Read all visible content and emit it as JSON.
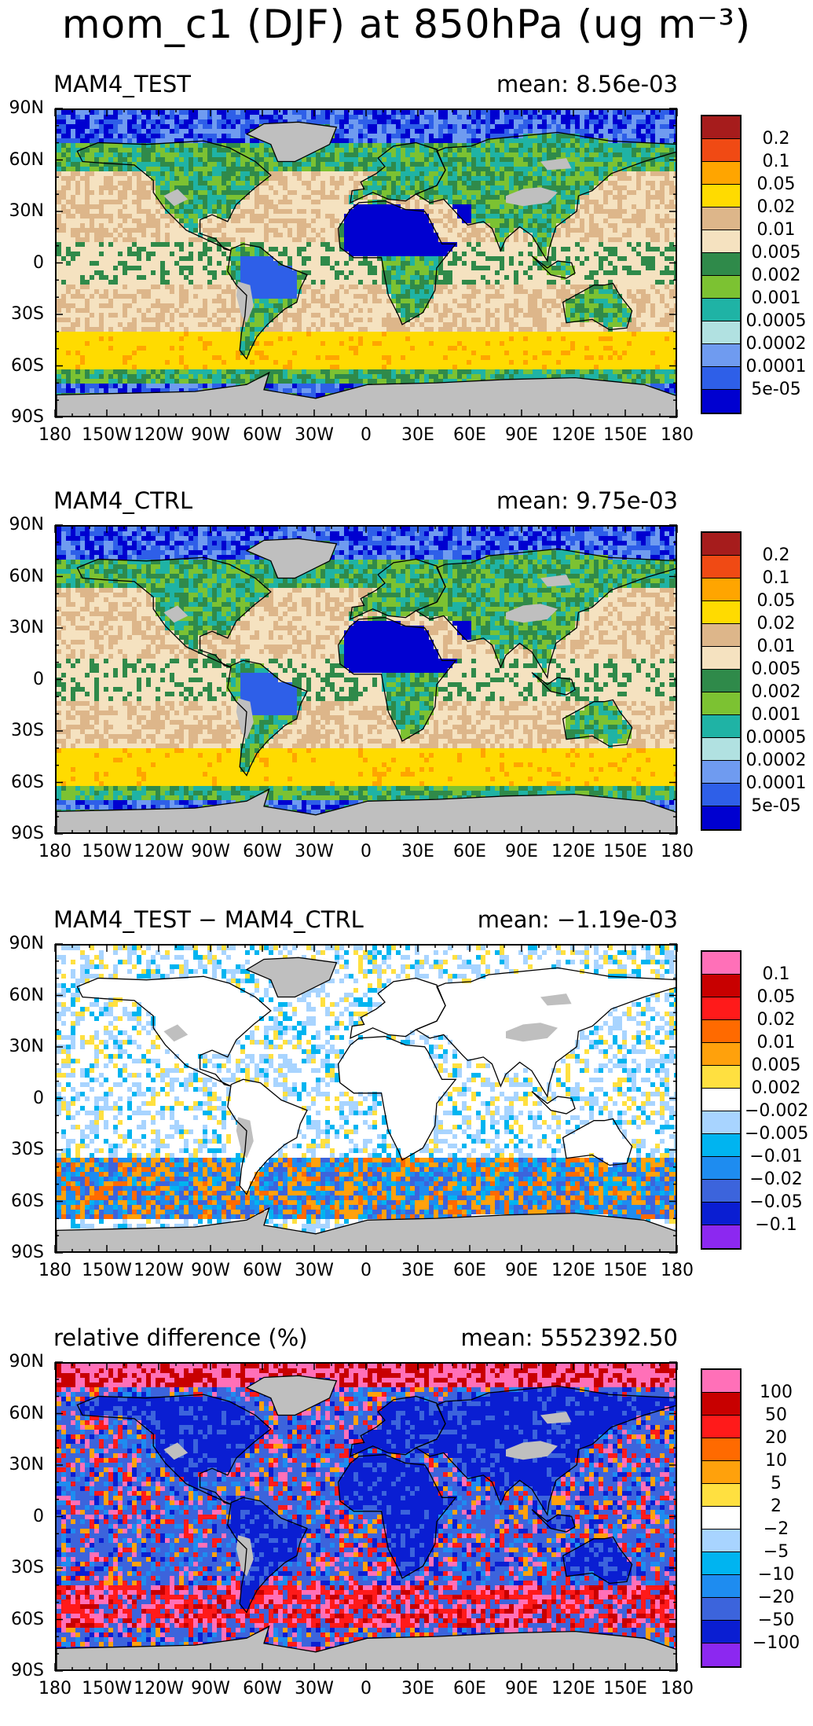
{
  "figure_title": "mom_c1 (DJF) at 850hPa (ug m⁻³)",
  "lat_ticks": [
    "90N",
    "60N",
    "30N",
    "0",
    "30S",
    "60S",
    "90S"
  ],
  "lon_ticks": [
    "180",
    "150W",
    "120W",
    "90W",
    "60W",
    "30W",
    "0",
    "30E",
    "60E",
    "90E",
    "120E",
    "150E",
    "180"
  ],
  "land_mask_color": "#bfbfbf",
  "panels": [
    {
      "title": "MAM4_TEST",
      "mean_text": "mean: 8.56e-03",
      "colorbar": {
        "colors": [
          "#a61c1c",
          "#f04a14",
          "#ffa500",
          "#ffdb00",
          "#ddb68a",
          "#f5e2c0",
          "#2f8a4a",
          "#7cc232",
          "#1fb3a5",
          "#b1e1e1",
          "#6f9bf0",
          "#2e5fe8",
          "#0000d0"
        ],
        "labels": [
          "0.2",
          "0.1",
          "0.05",
          "0.02",
          "0.01",
          "0.005",
          "0.002",
          "0.001",
          "0.0005",
          "0.0002",
          "0.0001",
          "5e-05"
        ]
      }
    },
    {
      "title": "MAM4_CTRL",
      "mean_text": "mean: 9.75e-03",
      "colorbar": {
        "colors": [
          "#a61c1c",
          "#f04a14",
          "#ffa500",
          "#ffdb00",
          "#ddb68a",
          "#f5e2c0",
          "#2f8a4a",
          "#7cc232",
          "#1fb3a5",
          "#b1e1e1",
          "#6f9bf0",
          "#2e5fe8",
          "#0000d0"
        ],
        "labels": [
          "0.2",
          "0.1",
          "0.05",
          "0.02",
          "0.01",
          "0.005",
          "0.002",
          "0.001",
          "0.0005",
          "0.0002",
          "0.0001",
          "5e-05"
        ]
      }
    },
    {
      "title": "MAM4_TEST − MAM4_CTRL",
      "mean_text": "mean: −1.19e-03",
      "colorbar": {
        "colors": [
          "#ff70b8",
          "#c80000",
          "#ff1a1a",
          "#ff6a00",
          "#ffa10c",
          "#ffe040",
          "#ffffff",
          "#a8d4ff",
          "#00b4f0",
          "#1e8cf0",
          "#3c64dc",
          "#0a1ed2",
          "#8c28f0"
        ],
        "labels": [
          "0.1",
          "0.05",
          "0.02",
          "0.01",
          "0.005",
          "0.002",
          "−0.002",
          "−0.005",
          "−0.01",
          "−0.02",
          "−0.05",
          "−0.1"
        ]
      }
    },
    {
      "title": "relative difference (%)",
      "mean_text": "mean: 5552392.50",
      "colorbar": {
        "colors": [
          "#ff70b8",
          "#c80000",
          "#ff1a1a",
          "#ff6a00",
          "#ffa10c",
          "#ffe040",
          "#ffffff",
          "#a8d4ff",
          "#00b4f0",
          "#1e8cf0",
          "#3c64dc",
          "#0a1ed2",
          "#8c28f0"
        ],
        "labels": [
          "100",
          "50",
          "20",
          "10",
          "5",
          "2",
          "−2",
          "−5",
          "−10",
          "−20",
          "−50",
          "−100"
        ]
      }
    }
  ]
}
